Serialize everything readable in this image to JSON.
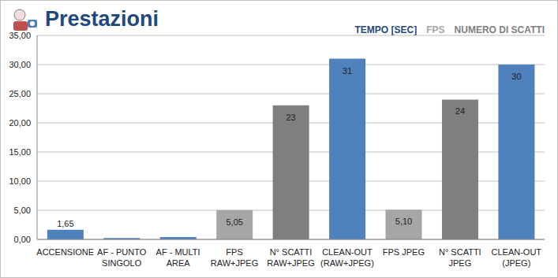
{
  "chart_data": {
    "type": "bar",
    "title": "Prestazioni",
    "annotations": [
      {
        "text": "TEMPO [SEC]",
        "color": "#1F497D"
      },
      {
        "text": "FPS",
        "color": "#A6A6A6"
      },
      {
        "text": "NUMERO DI SCATTI",
        "color": "#7F7F7F"
      }
    ],
    "categories": [
      "ACCENSIONE",
      "AF - PUNTO SINGOLO",
      "AF - MULTI AREA",
      "FPS RAW+JPEG",
      "N° SCATTI RAW+JPEG",
      "CLEAN-OUT (RAW+JPEG)",
      "FPS JPEG",
      "N° SCATTI JPEG",
      "CLEAN-OUT (JPEG)"
    ],
    "values": [
      1.65,
      0.25,
      0.4,
      5.05,
      23,
      31,
      5.1,
      24,
      30
    ],
    "value_labels": [
      "1,65",
      null,
      null,
      "5,05",
      "23",
      "31",
      "5,10",
      "24",
      "30"
    ],
    "colors": [
      "#4F81BD",
      "#4F81BD",
      "#4F81BD",
      "#A6A6A6",
      "#7F7F7F",
      "#4F81BD",
      "#A6A6A6",
      "#7F7F7F",
      "#4F81BD"
    ],
    "ylim": [
      0,
      35
    ],
    "yticks": [
      {
        "value": 0,
        "label": "0,00"
      },
      {
        "value": 5,
        "label": "5,00"
      },
      {
        "value": 10,
        "label": "10,00"
      },
      {
        "value": 15,
        "label": "15,00"
      },
      {
        "value": 20,
        "label": "20,00"
      },
      {
        "value": 25,
        "label": "25,00"
      },
      {
        "value": 30,
        "label": "30,00"
      },
      {
        "value": 35,
        "label": "35,00"
      }
    ],
    "grid": true,
    "data_labels": true
  }
}
